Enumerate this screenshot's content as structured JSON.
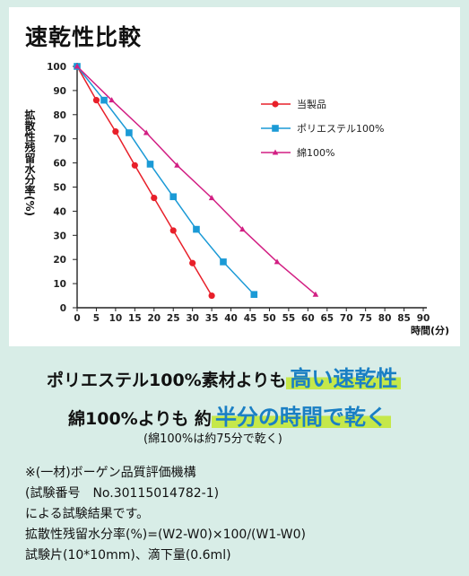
{
  "title": "速乾性比較",
  "chart_data": {
    "type": "line",
    "ylabel": "拡散性残留水分率(%)",
    "xlabel": "時間(分)",
    "xlim": [
      0,
      90
    ],
    "ylim": [
      0,
      100
    ],
    "xticks": [
      0,
      5,
      10,
      15,
      20,
      25,
      30,
      35,
      40,
      45,
      50,
      55,
      60,
      65,
      70,
      75,
      80,
      85,
      90
    ],
    "yticks": [
      0,
      10,
      20,
      30,
      40,
      50,
      60,
      70,
      80,
      90,
      100
    ],
    "grid": false,
    "legend_position": "top-right",
    "series": [
      {
        "name": "当製品",
        "color": "#e8202a",
        "marker": "circle",
        "x": [
          0,
          5,
          10,
          15,
          20,
          25,
          30,
          35
        ],
        "y": [
          100,
          86,
          73,
          59,
          45.5,
          32,
          18.5,
          5
        ]
      },
      {
        "name": "ポリエステル100%",
        "color": "#1b9ad6",
        "marker": "square",
        "x": [
          0,
          7,
          13.5,
          19,
          25,
          31,
          38,
          46
        ],
        "y": [
          100,
          86,
          72.5,
          59.5,
          46,
          32.5,
          19,
          5.5
        ]
      },
      {
        "name": "綿100%",
        "color": "#d21f83",
        "marker": "triangle",
        "x": [
          0,
          9,
          18,
          26,
          35,
          43,
          52,
          62
        ],
        "y": [
          100,
          86,
          72.5,
          59,
          45.5,
          32.5,
          19,
          5.5
        ]
      }
    ]
  },
  "headline": {
    "line1_pre": "ポリエステル100%素材よりも",
    "line1_hl": "高い速乾性",
    "line2_pre": "綿100%よりも 約",
    "line2_hl": "半分の時間で乾く",
    "line3": "(綿100%は約75分で乾く)"
  },
  "note": [
    "※(一材)ボーゲン品質評価機構",
    "(試験番号　No.30115014782-1)",
    "による試験結果です。",
    "拡散性残留水分率(%)=(W2-W0)×100/(W1-W0)",
    "試験片(10*10mm)、滴下量(0.6ml)"
  ]
}
